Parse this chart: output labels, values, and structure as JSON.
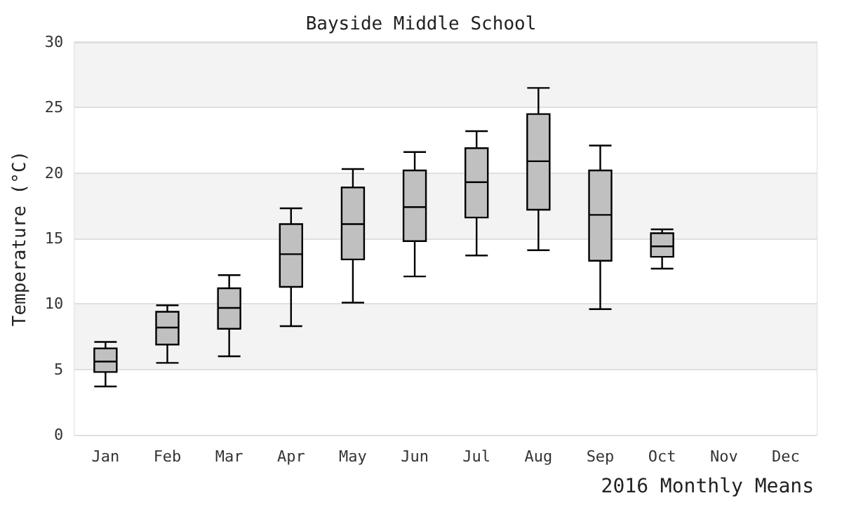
{
  "chart_data": {
    "type": "box",
    "title": "Bayside Middle School",
    "ylabel": "Temperature (°C)",
    "annotations": [
      "2016 Monthly Means"
    ],
    "categories": [
      "Jan",
      "Feb",
      "Mar",
      "Apr",
      "May",
      "Jun",
      "Jul",
      "Aug",
      "Sep",
      "Oct",
      "Nov",
      "Dec"
    ],
    "series": [
      {
        "color": "#c0c0c0",
        "boxes": [
          {
            "low": 3.7,
            "q1": 4.8,
            "median": 5.6,
            "q3": 6.6,
            "high": 7.1
          },
          {
            "low": 5.5,
            "q1": 6.9,
            "median": 8.2,
            "q3": 9.4,
            "high": 9.9
          },
          {
            "low": 6.0,
            "q1": 8.1,
            "median": 9.7,
            "q3": 11.2,
            "high": 12.2
          },
          {
            "low": 8.3,
            "q1": 11.3,
            "median": 13.8,
            "q3": 16.1,
            "high": 17.3
          },
          {
            "low": 10.1,
            "q1": 13.4,
            "median": 16.1,
            "q3": 18.9,
            "high": 20.3
          },
          {
            "low": 12.1,
            "q1": 14.8,
            "median": 17.4,
            "q3": 20.2,
            "high": 21.6
          },
          {
            "low": 13.7,
            "q1": 16.6,
            "median": 19.3,
            "q3": 21.9,
            "high": 23.2
          },
          {
            "low": 14.1,
            "q1": 17.2,
            "median": 20.9,
            "q3": 24.5,
            "high": 26.5
          },
          {
            "low": 9.6,
            "q1": 13.3,
            "median": 16.8,
            "q3": 20.2,
            "high": 22.1
          },
          {
            "low": 12.7,
            "q1": 13.6,
            "median": 14.4,
            "q3": 15.4,
            "high": 15.7
          },
          null,
          null
        ]
      }
    ],
    "ylim": [
      0,
      30
    ],
    "yticks": [
      0,
      5,
      10,
      15,
      20,
      25,
      30
    ],
    "grid": "y"
  }
}
